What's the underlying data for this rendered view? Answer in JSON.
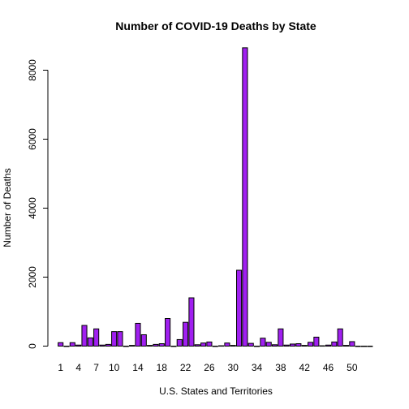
{
  "chart_data": {
    "type": "bar",
    "title": "Number of COVID-19 Deaths by State",
    "xlabel": "U.S. States and Territories",
    "ylabel": "Number of Deaths",
    "ylim": [
      0,
      8800
    ],
    "yticks": [
      0,
      2000,
      4000,
      6000,
      8000
    ],
    "x_tick_labels": [
      "1",
      "4",
      "7",
      "10",
      "14",
      "18",
      "22",
      "26",
      "30",
      "34",
      "38",
      "42",
      "46",
      "50"
    ],
    "x_tick_positions": [
      1,
      4,
      7,
      10,
      14,
      18,
      22,
      26,
      30,
      34,
      38,
      42,
      46,
      50
    ],
    "bar_color": "#a020f0",
    "categories": [
      1,
      2,
      3,
      4,
      5,
      6,
      7,
      8,
      9,
      10,
      11,
      12,
      13,
      14,
      15,
      16,
      17,
      18,
      19,
      20,
      21,
      22,
      23,
      24,
      25,
      26,
      27,
      28,
      29,
      30,
      31,
      32,
      33,
      34,
      35,
      36,
      37,
      38,
      39,
      40,
      41,
      42,
      43,
      44,
      45,
      46,
      47,
      48,
      49,
      50,
      51,
      52,
      53
    ],
    "values": [
      100,
      0,
      100,
      30,
      600,
      240,
      500,
      30,
      50,
      420,
      420,
      0,
      20,
      660,
      330,
      20,
      50,
      70,
      800,
      0,
      190,
      690,
      1400,
      40,
      90,
      120,
      0,
      10,
      90,
      20,
      2200,
      8650,
      80,
      0,
      230,
      110,
      40,
      500,
      30,
      60,
      70,
      20,
      110,
      260,
      10,
      30,
      120,
      500,
      20,
      130,
      0,
      0,
      0
    ]
  }
}
